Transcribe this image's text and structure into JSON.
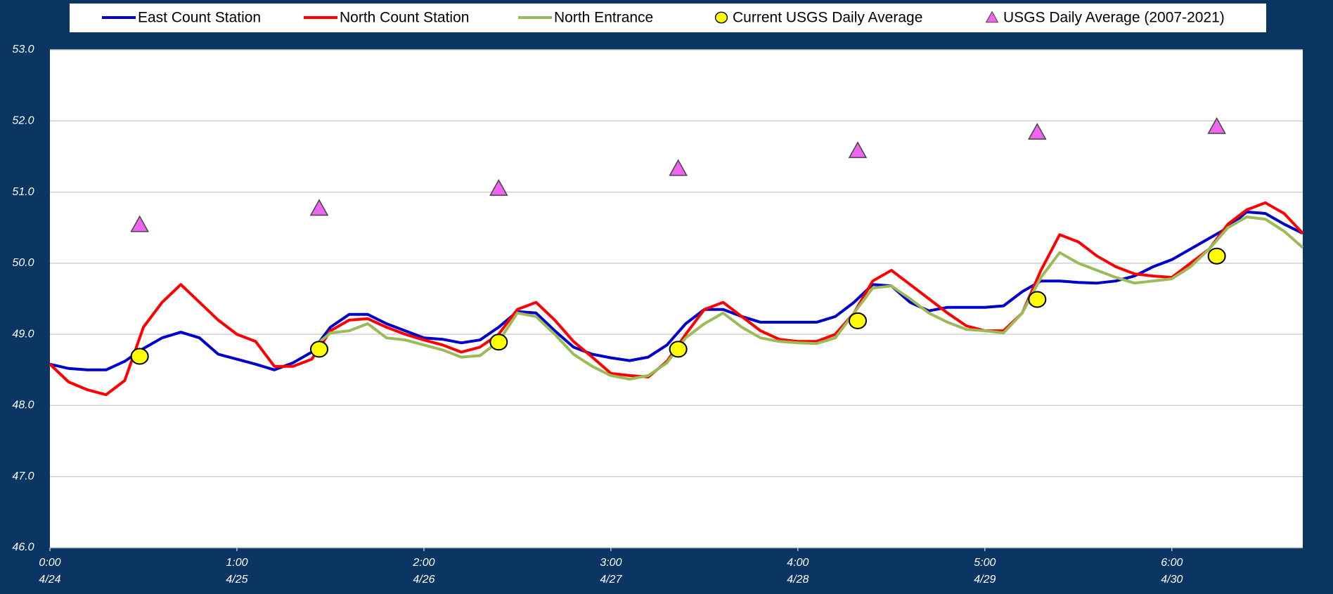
{
  "chart_data": {
    "type": "line",
    "x": [
      0,
      0.1,
      0.2,
      0.3,
      0.4,
      0.5,
      0.6,
      0.7,
      0.8,
      0.9,
      1,
      1.1,
      1.2,
      1.3,
      1.4,
      1.5,
      1.6,
      1.7,
      1.8,
      1.9,
      2,
      2.1,
      2.2,
      2.3,
      2.4,
      2.5,
      2.6,
      2.7,
      2.8,
      2.9,
      3,
      3.1,
      3.2,
      3.3,
      3.4,
      3.5,
      3.6,
      3.7,
      3.8,
      3.9,
      4,
      4.1,
      4.2,
      4.3,
      4.4,
      4.5,
      4.6,
      4.7,
      4.8,
      4.9,
      5,
      5.1,
      5.2,
      5.3,
      5.4,
      5.5,
      5.6,
      5.7,
      5.8,
      5.9,
      6,
      6.1,
      6.2,
      6.3,
      6.4,
      6.5,
      6.6,
      6.7
    ],
    "series": [
      {
        "name": "East Count Station",
        "color": "#0000c8",
        "values": [
          48.58,
          48.52,
          48.5,
          48.5,
          48.62,
          48.8,
          48.95,
          49.03,
          48.95,
          48.72,
          48.65,
          48.58,
          48.5,
          48.6,
          48.75,
          49.1,
          49.28,
          49.28,
          49.15,
          49.05,
          48.95,
          48.93,
          48.88,
          48.92,
          49.1,
          49.32,
          49.3,
          49.05,
          48.82,
          48.72,
          48.67,
          48.63,
          48.68,
          48.85,
          49.15,
          49.35,
          49.35,
          49.25,
          49.17,
          49.17,
          49.17,
          49.17,
          49.25,
          49.45,
          49.7,
          49.68,
          49.45,
          49.33,
          49.38,
          49.38,
          49.38,
          49.4,
          49.6,
          49.75,
          49.75,
          49.73,
          49.72,
          49.75,
          49.82,
          49.95,
          50.05,
          50.2,
          50.35,
          50.5,
          50.72,
          50.7,
          50.55,
          50.42
        ]
      },
      {
        "name": "North Count Station",
        "color": "#ff0000",
        "values": [
          48.58,
          48.33,
          48.22,
          48.15,
          48.35,
          49.1,
          49.45,
          49.7,
          49.45,
          49.2,
          49.0,
          48.9,
          48.55,
          48.55,
          48.65,
          49.05,
          49.2,
          49.22,
          49.1,
          49.0,
          48.92,
          48.85,
          48.75,
          48.82,
          49.0,
          49.35,
          49.45,
          49.2,
          48.9,
          48.68,
          48.45,
          48.42,
          48.4,
          48.62,
          49.0,
          49.35,
          49.45,
          49.25,
          49.05,
          48.93,
          48.9,
          48.9,
          49.0,
          49.3,
          49.75,
          49.9,
          49.7,
          49.5,
          49.3,
          49.12,
          49.05,
          49.05,
          49.3,
          49.9,
          50.4,
          50.3,
          50.1,
          49.95,
          49.85,
          49.82,
          49.8,
          50.0,
          50.2,
          50.55,
          50.75,
          50.85,
          50.7,
          50.42
        ]
      },
      {
        "name": "North Entrance",
        "color": "#9bbb59",
        "values": [
          null,
          null,
          null,
          null,
          null,
          null,
          null,
          null,
          null,
          null,
          null,
          null,
          null,
          null,
          48.8,
          49.02,
          49.05,
          49.15,
          48.95,
          48.92,
          48.85,
          48.78,
          48.68,
          48.7,
          48.9,
          49.3,
          49.25,
          49.0,
          48.72,
          48.55,
          48.42,
          48.37,
          48.42,
          48.6,
          48.95,
          49.15,
          49.3,
          49.1,
          48.95,
          48.9,
          48.88,
          48.87,
          48.95,
          49.3,
          49.65,
          49.68,
          49.5,
          49.3,
          49.17,
          49.07,
          49.05,
          49.02,
          49.3,
          49.8,
          50.15,
          50.0,
          49.9,
          49.8,
          49.72,
          49.75,
          49.78,
          49.95,
          50.2,
          50.5,
          50.65,
          50.62,
          50.45,
          50.22
        ]
      },
      {
        "name": "Current USGS Daily Average",
        "color": "#ffff00",
        "marker": "circle",
        "x": [
          0.48,
          1.44,
          2.4,
          3.36,
          4.32,
          5.28,
          6.24
        ],
        "values": [
          48.69,
          48.79,
          48.89,
          48.79,
          49.19,
          49.49,
          50.1
        ]
      },
      {
        "name": "USGS Daily Average (2007-2021)",
        "color": "#ee66ee",
        "marker": "triangle",
        "x": [
          0.48,
          1.44,
          2.4,
          3.36,
          4.32,
          5.28,
          6.24
        ],
        "values": [
          50.54,
          50.77,
          51.05,
          51.33,
          51.58,
          51.84,
          51.92
        ]
      }
    ],
    "xlim": [
      0,
      6.7
    ],
    "xticks": [
      {
        "value": 0,
        "label": "0:00",
        "date": "4/24"
      },
      {
        "value": 1,
        "label": "1:00",
        "date": "4/25"
      },
      {
        "value": 2,
        "label": "2:00",
        "date": "4/26"
      },
      {
        "value": 3,
        "label": "3:00",
        "date": "4/27"
      },
      {
        "value": 4,
        "label": "4:00",
        "date": "4/28"
      },
      {
        "value": 5,
        "label": "5:00",
        "date": "4/29"
      },
      {
        "value": 6,
        "label": "6:00",
        "date": "4/30"
      }
    ],
    "ylim": [
      46,
      53
    ],
    "yticks": [
      {
        "value": 46,
        "label": "46.0"
      },
      {
        "value": 47,
        "label": "47.0"
      },
      {
        "value": 48,
        "label": "48.0"
      },
      {
        "value": 49,
        "label": "49.0"
      },
      {
        "value": 50,
        "label": "50.0"
      },
      {
        "value": 51,
        "label": "51.0"
      },
      {
        "value": 52,
        "label": "52.0"
      },
      {
        "value": 53,
        "label": "53.0"
      }
    ],
    "grid": true
  }
}
